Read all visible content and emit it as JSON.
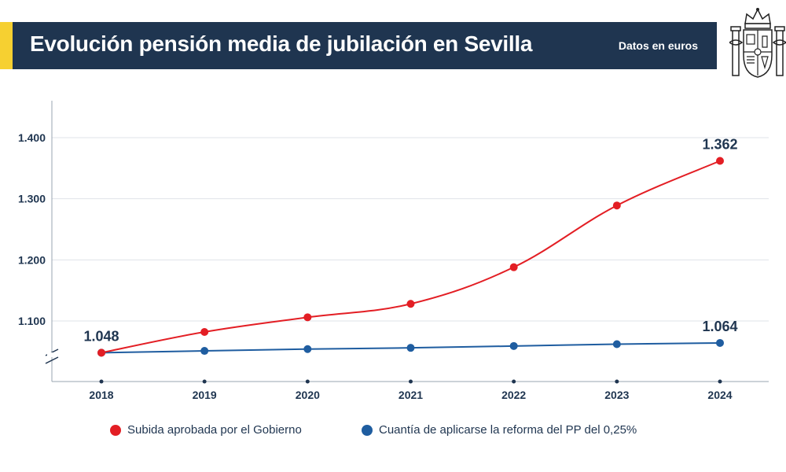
{
  "header": {
    "title": "Evolución pensión media de jubilación en Sevilla",
    "note": "Datos en euros"
  },
  "colors": {
    "header_bg": "#1f3550",
    "accent": "#f6d031",
    "series_gobierno": "#e31e24",
    "series_pp": "#1f5da0",
    "axis_text": "#1f3550"
  },
  "icons": {
    "emblem": "coat-of-arms-of-spain-icon"
  },
  "chart_data": {
    "type": "line",
    "title": "Evolución pensión media de jubilación en Sevilla",
    "x": [
      "2018",
      "2019",
      "2020",
      "2021",
      "2022",
      "2023",
      "2024"
    ],
    "yticks": [
      "1.100",
      "1.200",
      "1.300",
      "1.400"
    ],
    "ytick_values": [
      1100,
      1200,
      1300,
      1400
    ],
    "ylim": [
      1000,
      1460
    ],
    "axis_break": true,
    "grid": true,
    "legend_position": "bottom",
    "series": [
      {
        "name": "Subida aprobada por el Gobierno",
        "color": "#e31e24",
        "values": [
          1048,
          1082,
          1106,
          1128,
          1188,
          1289,
          1362
        ],
        "labels": [
          "1.048",
          "",
          "",
          "",
          "",
          "",
          "1.362"
        ]
      },
      {
        "name": "Cuantía de aplicarse la reforma del PP del 0,25%",
        "color": "#1f5da0",
        "values": [
          1048,
          1051,
          1054,
          1056,
          1059,
          1062,
          1064
        ],
        "labels": [
          "",
          "",
          "",
          "",
          "",
          "",
          "1.064"
        ]
      }
    ]
  }
}
